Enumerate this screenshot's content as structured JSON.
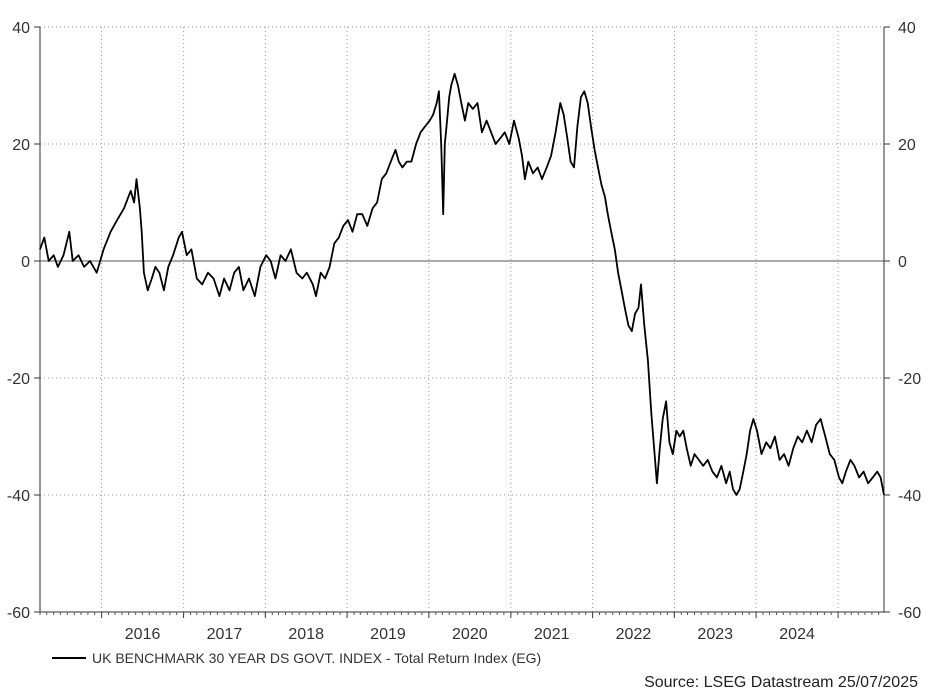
{
  "chart_data": {
    "type": "line",
    "title": "",
    "xlabel": "",
    "ylabel": "",
    "ylim": [
      -60,
      40
    ],
    "yticks": [
      40,
      20,
      0,
      -20,
      -40,
      -60
    ],
    "xlim": [
      "2015-04-01",
      "2025-07-25"
    ],
    "x_tick_labels": [
      "2016",
      "2017",
      "2018",
      "2019",
      "2020",
      "2021",
      "2022",
      "2023",
      "2024"
    ],
    "grid": "dotted",
    "dual_y_axis": true,
    "zero_line": true,
    "legend_position": "bottom-left",
    "series": [
      {
        "name": "UK BENCHMARK 30 YEAR DS GOVT. INDEX - Total Return Index (EG)",
        "color": "#000000",
        "points": [
          [
            "2015-04-01",
            2
          ],
          [
            "2015-04-20",
            4
          ],
          [
            "2015-05-10",
            0
          ],
          [
            "2015-06-01",
            1
          ],
          [
            "2015-06-20",
            -1
          ],
          [
            "2015-07-15",
            1
          ],
          [
            "2015-08-10",
            5
          ],
          [
            "2015-08-25",
            0
          ],
          [
            "2015-09-20",
            1
          ],
          [
            "2015-10-15",
            -1
          ],
          [
            "2015-11-10",
            0
          ],
          [
            "2015-12-10",
            -2
          ],
          [
            "2016-01-10",
            2
          ],
          [
            "2016-02-10",
            5
          ],
          [
            "2016-03-10",
            7
          ],
          [
            "2016-04-10",
            9
          ],
          [
            "2016-05-10",
            12
          ],
          [
            "2016-05-25",
            10
          ],
          [
            "2016-06-05",
            14
          ],
          [
            "2016-06-20",
            9
          ],
          [
            "2016-06-28",
            5
          ],
          [
            "2016-07-08",
            -2
          ],
          [
            "2016-07-25",
            -5
          ],
          [
            "2016-08-12",
            -3
          ],
          [
            "2016-08-28",
            -1
          ],
          [
            "2016-09-15",
            -2
          ],
          [
            "2016-10-05",
            -5
          ],
          [
            "2016-10-25",
            -1
          ],
          [
            "2016-11-15",
            1
          ],
          [
            "2016-12-10",
            4
          ],
          [
            "2016-12-25",
            5
          ],
          [
            "2017-01-15",
            1
          ],
          [
            "2017-02-05",
            2
          ],
          [
            "2017-03-01",
            -3
          ],
          [
            "2017-03-25",
            -4
          ],
          [
            "2017-04-20",
            -2
          ],
          [
            "2017-05-15",
            -3
          ],
          [
            "2017-06-10",
            -6
          ],
          [
            "2017-07-01",
            -3
          ],
          [
            "2017-07-25",
            -5
          ],
          [
            "2017-08-15",
            -2
          ],
          [
            "2017-09-05",
            -1
          ],
          [
            "2017-09-25",
            -5
          ],
          [
            "2017-10-20",
            -3
          ],
          [
            "2017-11-15",
            -6
          ],
          [
            "2017-12-10",
            -1
          ],
          [
            "2018-01-05",
            1
          ],
          [
            "2018-01-25",
            0
          ],
          [
            "2018-02-15",
            -3
          ],
          [
            "2018-03-10",
            1
          ],
          [
            "2018-04-01",
            0
          ],
          [
            "2018-04-25",
            2
          ],
          [
            "2018-05-20",
            -2
          ],
          [
            "2018-06-15",
            -3
          ],
          [
            "2018-07-05",
            -2
          ],
          [
            "2018-08-01",
            -4
          ],
          [
            "2018-08-15",
            -6
          ],
          [
            "2018-09-05",
            -2
          ],
          [
            "2018-09-25",
            -3
          ],
          [
            "2018-10-15",
            -1
          ],
          [
            "2018-11-05",
            3
          ],
          [
            "2018-11-25",
            4
          ],
          [
            "2018-12-15",
            6
          ],
          [
            "2019-01-05",
            7
          ],
          [
            "2019-01-25",
            5
          ],
          [
            "2019-02-15",
            8
          ],
          [
            "2019-03-10",
            8
          ],
          [
            "2019-04-01",
            6
          ],
          [
            "2019-04-25",
            9
          ],
          [
            "2019-05-15",
            10
          ],
          [
            "2019-06-05",
            14
          ],
          [
            "2019-06-25",
            15
          ],
          [
            "2019-07-15",
            17
          ],
          [
            "2019-08-05",
            19
          ],
          [
            "2019-08-20",
            17
          ],
          [
            "2019-09-05",
            16
          ],
          [
            "2019-09-25",
            17
          ],
          [
            "2019-10-15",
            17
          ],
          [
            "2019-11-05",
            20
          ],
          [
            "2019-11-25",
            22
          ],
          [
            "2019-12-15",
            23
          ],
          [
            "2020-01-05",
            24
          ],
          [
            "2020-01-20",
            25
          ],
          [
            "2020-02-05",
            27
          ],
          [
            "2020-02-15",
            29
          ],
          [
            "2020-02-25",
            20
          ],
          [
            "2020-03-05",
            8
          ],
          [
            "2020-03-12",
            20
          ],
          [
            "2020-03-20",
            23
          ],
          [
            "2020-04-01",
            28
          ],
          [
            "2020-04-10",
            30
          ],
          [
            "2020-04-25",
            32
          ],
          [
            "2020-05-10",
            30
          ],
          [
            "2020-05-25",
            27
          ],
          [
            "2020-06-10",
            24
          ],
          [
            "2020-06-25",
            27
          ],
          [
            "2020-07-15",
            26
          ],
          [
            "2020-08-05",
            27
          ],
          [
            "2020-08-25",
            22
          ],
          [
            "2020-09-15",
            24
          ],
          [
            "2020-10-05",
            22
          ],
          [
            "2020-10-25",
            20
          ],
          [
            "2020-11-15",
            21
          ],
          [
            "2020-12-05",
            22
          ],
          [
            "2020-12-25",
            20
          ],
          [
            "2021-01-15",
            24
          ],
          [
            "2021-02-05",
            21
          ],
          [
            "2021-02-20",
            18
          ],
          [
            "2021-03-05",
            14
          ],
          [
            "2021-03-20",
            17
          ],
          [
            "2021-04-10",
            15
          ],
          [
            "2021-05-01",
            16
          ],
          [
            "2021-05-20",
            14
          ],
          [
            "2021-06-10",
            16
          ],
          [
            "2021-06-30",
            18
          ],
          [
            "2021-07-20",
            22
          ],
          [
            "2021-08-10",
            27
          ],
          [
            "2021-08-25",
            25
          ],
          [
            "2021-09-10",
            21
          ],
          [
            "2021-09-25",
            17
          ],
          [
            "2021-10-10",
            16
          ],
          [
            "2021-10-25",
            23
          ],
          [
            "2021-11-10",
            28
          ],
          [
            "2021-11-25",
            29
          ],
          [
            "2021-12-10",
            27
          ],
          [
            "2021-12-25",
            23
          ],
          [
            "2022-01-10",
            19
          ],
          [
            "2022-01-25",
            16
          ],
          [
            "2022-02-10",
            13
          ],
          [
            "2022-02-25",
            11
          ],
          [
            "2022-03-10",
            8
          ],
          [
            "2022-03-25",
            5
          ],
          [
            "2022-04-10",
            2
          ],
          [
            "2022-04-25",
            -2
          ],
          [
            "2022-05-10",
            -5
          ],
          [
            "2022-05-25",
            -8
          ],
          [
            "2022-06-10",
            -11
          ],
          [
            "2022-06-25",
            -12
          ],
          [
            "2022-07-10",
            -9
          ],
          [
            "2022-07-25",
            -8
          ],
          [
            "2022-08-05",
            -4
          ],
          [
            "2022-08-20",
            -11
          ],
          [
            "2022-09-05",
            -17
          ],
          [
            "2022-09-20",
            -26
          ],
          [
            "2022-10-05",
            -33
          ],
          [
            "2022-10-15",
            -38
          ],
          [
            "2022-10-28",
            -32
          ],
          [
            "2022-11-10",
            -27
          ],
          [
            "2022-11-25",
            -24
          ],
          [
            "2022-12-10",
            -31
          ],
          [
            "2022-12-25",
            -33
          ],
          [
            "2023-01-10",
            -29
          ],
          [
            "2023-01-25",
            -30
          ],
          [
            "2023-02-10",
            -29
          ],
          [
            "2023-02-25",
            -32
          ],
          [
            "2023-03-15",
            -35
          ],
          [
            "2023-04-01",
            -33
          ],
          [
            "2023-04-20",
            -34
          ],
          [
            "2023-05-10",
            -35
          ],
          [
            "2023-05-30",
            -34
          ],
          [
            "2023-06-20",
            -36
          ],
          [
            "2023-07-10",
            -37
          ],
          [
            "2023-07-30",
            -35
          ],
          [
            "2023-08-20",
            -38
          ],
          [
            "2023-09-05",
            -36
          ],
          [
            "2023-09-20",
            -39
          ],
          [
            "2023-10-05",
            -40
          ],
          [
            "2023-10-20",
            -39
          ],
          [
            "2023-11-05",
            -36
          ],
          [
            "2023-11-20",
            -33
          ],
          [
            "2023-12-05",
            -29
          ],
          [
            "2023-12-20",
            -27
          ],
          [
            "2024-01-05",
            -29
          ],
          [
            "2024-01-25",
            -33
          ],
          [
            "2024-02-15",
            -31
          ],
          [
            "2024-03-05",
            -32
          ],
          [
            "2024-03-25",
            -30
          ],
          [
            "2024-04-15",
            -34
          ],
          [
            "2024-05-05",
            -33
          ],
          [
            "2024-05-25",
            -35
          ],
          [
            "2024-06-15",
            -32
          ],
          [
            "2024-07-05",
            -30
          ],
          [
            "2024-07-25",
            -31
          ],
          [
            "2024-08-15",
            -29
          ],
          [
            "2024-09-05",
            -31
          ],
          [
            "2024-09-25",
            -28
          ],
          [
            "2024-10-15",
            -27
          ],
          [
            "2024-11-05",
            -30
          ],
          [
            "2024-11-25",
            -33
          ],
          [
            "2024-12-15",
            -34
          ],
          [
            "2025-01-05",
            -37
          ],
          [
            "2025-01-20",
            -38
          ],
          [
            "2025-02-05",
            -36
          ],
          [
            "2025-02-25",
            -34
          ],
          [
            "2025-03-15",
            -35
          ],
          [
            "2025-04-05",
            -37
          ],
          [
            "2025-04-25",
            -36
          ],
          [
            "2025-05-15",
            -38
          ],
          [
            "2025-06-05",
            -37
          ],
          [
            "2025-06-25",
            -36
          ],
          [
            "2025-07-10",
            -37
          ],
          [
            "2025-07-25",
            -40
          ]
        ]
      }
    ]
  },
  "legend": {
    "label": "UK BENCHMARK 30 YEAR DS GOVT. INDEX - Total Return Index (EG)"
  },
  "source": {
    "text": "Source: LSEG Datastream 25/07/2025"
  }
}
